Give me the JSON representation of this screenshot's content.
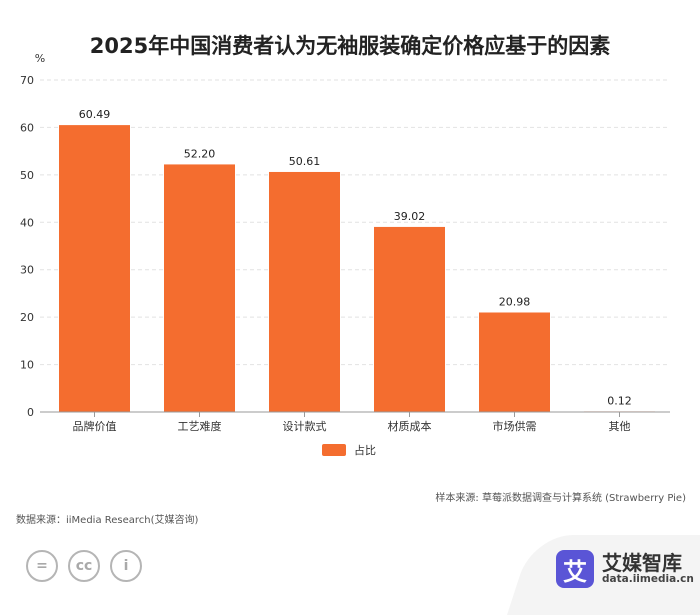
{
  "title": "2025年中国消费者认为无袖服装确定价格应基于的因素",
  "chart_data": {
    "type": "bar",
    "title": "2025年中国消费者认为无袖服装确定价格应基于的因素",
    "ylabel": "%",
    "xlabel": "",
    "ylim": [
      0,
      70
    ],
    "yticks": [
      0,
      10,
      20,
      30,
      40,
      50,
      60,
      70
    ],
    "categories": [
      "品牌价值",
      "工艺难度",
      "设计款式",
      "材质成本",
      "市场供需",
      "其他"
    ],
    "values": [
      60.49,
      52.2,
      50.61,
      39.02,
      20.98,
      0.12
    ],
    "value_labels": [
      "60.49",
      "52.20",
      "50.61",
      "39.02",
      "20.98",
      "0.12"
    ],
    "series_name": "占比",
    "grid": true,
    "legend": "bottom-center"
  },
  "colors": {
    "bar": "#f46d2f",
    "grid": "#e2e2e2",
    "axis": "#999999"
  },
  "footer": {
    "sample": "样本来源: 草莓派数据调查与计算系统 (Strawberry Pie)",
    "source": "数据来源：iiMedia Research(艾媒咨询)"
  },
  "license_icons": [
    {
      "name": "equals-icon",
      "glyph": "="
    },
    {
      "name": "creative-commons-icon",
      "glyph": "cc"
    },
    {
      "name": "attribution-person-icon",
      "glyph": "i"
    }
  ],
  "brand": {
    "mark": "艾",
    "name": "艾媒智库",
    "url": "data.iimedia.cn"
  }
}
